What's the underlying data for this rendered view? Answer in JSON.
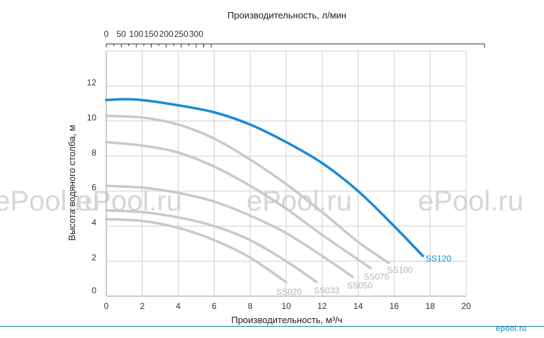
{
  "chart_data": {
    "type": "line",
    "xlabel": "Производительность, м³/ч",
    "x2label": "Производительность, л/мин",
    "ylabel": "Высота водяного столба, м",
    "xlim": [
      0,
      20
    ],
    "ylim": [
      0,
      14
    ],
    "x2lim": [
      0,
      350
    ],
    "x_ticks": [
      "0",
      "2",
      "4",
      "6",
      "8",
      "10",
      "12",
      "14",
      "16",
      "18",
      "20"
    ],
    "x2_ticks": [
      "0",
      "50",
      "100",
      "150",
      "200",
      "250",
      "300"
    ],
    "y_ticks": [
      "0",
      "2",
      "4",
      "6",
      "8",
      "10",
      "12"
    ],
    "grid": true,
    "series": [
      {
        "name": "SS020",
        "color": "#c9c9c9",
        "label_color": "#b5b5b5",
        "x": [
          0,
          2,
          4,
          6,
          8,
          10
        ],
        "y": [
          4.4,
          4.3,
          3.9,
          3.2,
          2.2,
          0.8
        ]
      },
      {
        "name": "SS033",
        "color": "#c9c9c9",
        "label_color": "#b5b5b5",
        "x": [
          0,
          2,
          4,
          6,
          8,
          10,
          11.7
        ],
        "y": [
          4.9,
          4.8,
          4.5,
          4.0,
          3.2,
          2.0,
          0.8
        ]
      },
      {
        "name": "SS050",
        "color": "#c9c9c9",
        "label_color": "#b5b5b5",
        "x": [
          0,
          2,
          4,
          6,
          8,
          10,
          12,
          13.7
        ],
        "y": [
          6.3,
          6.2,
          5.9,
          5.4,
          4.6,
          3.6,
          2.3,
          1.1
        ]
      },
      {
        "name": "SS075",
        "color": "#c9c9c9",
        "label_color": "#b5b5b5",
        "x": [
          0,
          2,
          4,
          6,
          8,
          10,
          12,
          14.7
        ],
        "y": [
          8.8,
          8.6,
          8.2,
          7.4,
          6.3,
          5.0,
          3.5,
          1.6
        ]
      },
      {
        "name": "SS100",
        "color": "#c9c9c9",
        "label_color": "#b5b5b5",
        "x": [
          0,
          2,
          4,
          6,
          8,
          10,
          12,
          14,
          15.7
        ],
        "y": [
          10.3,
          10.2,
          9.8,
          9.0,
          7.8,
          6.4,
          4.8,
          3.1,
          1.9
        ]
      },
      {
        "name": "SS120",
        "color": "#1a8ad4",
        "label_color": "#1a8ad4",
        "x": [
          0,
          1,
          2,
          4,
          6,
          8,
          10,
          12,
          14,
          16,
          17.6
        ],
        "y": [
          11.2,
          11.25,
          11.2,
          10.9,
          10.5,
          9.8,
          8.8,
          7.6,
          6.0,
          4.0,
          2.3
        ]
      }
    ]
  },
  "watermark": "ePool.ru",
  "logo_text": "epool.ru"
}
